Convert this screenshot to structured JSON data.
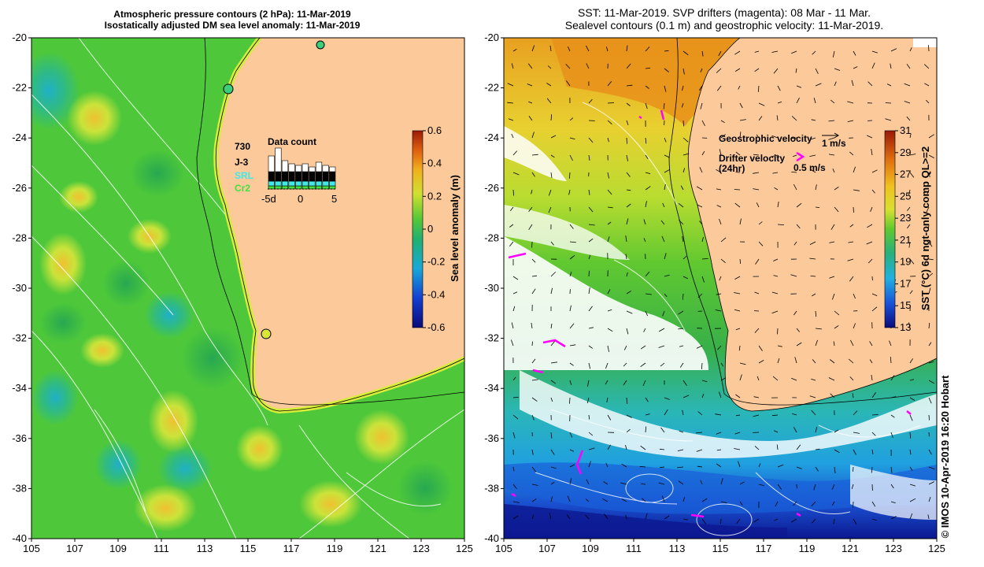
{
  "left_map": {
    "title_line1": "Atmospheric pressure contours (2 hPa): 11-Mar-2019",
    "title_line2": "Isostatically adjusted DM sea level anomaly: 11-Mar-2019",
    "lon_ticks": [
      "105",
      "107",
      "109",
      "111",
      "113",
      "115",
      "117",
      "119",
      "121",
      "123",
      "125"
    ],
    "lat_ticks": [
      "-20",
      "-22",
      "-24",
      "-26",
      "-28",
      "-30",
      "-32",
      "-34",
      "-36",
      "-38",
      "-40"
    ],
    "colorbar": {
      "label": "Sea level anomaly (m)",
      "ticks": [
        "0.6",
        "0.4",
        "0.2",
        "0",
        "-0.2",
        "-0.4",
        "-0.6"
      ],
      "range": [
        -0.6,
        0.6
      ]
    },
    "data_count": {
      "title": "Data count",
      "satellites": [
        "730",
        "J-3",
        "SRL",
        "Cr2"
      ],
      "axis_ticks": [
        "-5d",
        "0",
        "5"
      ]
    }
  },
  "right_map": {
    "title_line1": "SST: 11-Mar-2019. SVP drifters (magenta): 08 Mar - 11 Mar.",
    "title_line2": "Sealevel contours (0.1 m) and geostrophic velocity: 11-Mar-2019.",
    "lon_ticks": [
      "105",
      "107",
      "109",
      "111",
      "113",
      "115",
      "117",
      "119",
      "121",
      "123",
      "125"
    ],
    "lat_ticks": [
      "-20",
      "-22",
      "-24",
      "-26",
      "-28",
      "-30",
      "-32",
      "-34",
      "-36",
      "-38",
      "-40"
    ],
    "legend": {
      "geostrophic_label": "Geostrophic velocity",
      "geostrophic_scale": "1 m/s",
      "drifter_label_line1": "Drifter velocity",
      "drifter_label_line2": "(24hr)",
      "drifter_scale": "0.5 m/s"
    },
    "colorbar": {
      "label": "SST (°C) 6d ngt-only comp QL>=2",
      "ticks": [
        "31",
        "29",
        "27",
        "25",
        "23",
        "21",
        "19",
        "17",
        "15",
        "13"
      ],
      "range": [
        13,
        31
      ]
    }
  },
  "credit": "© IMOS 10-Apr-2019 16:20 Hobart",
  "colors": {
    "land": "#fbc99a",
    "sla_green": "#45c93c",
    "sla_yellow": "#d8e83a",
    "sla_cyan": "#2fb6a8",
    "sst_orange": "#e07b10",
    "sst_yellow": "#e8d82a",
    "sst_green": "#5ec82e",
    "sst_blue": "#1a6fd6",
    "sst_navy": "#0a1a8a",
    "drifter": "#ff00ff"
  }
}
